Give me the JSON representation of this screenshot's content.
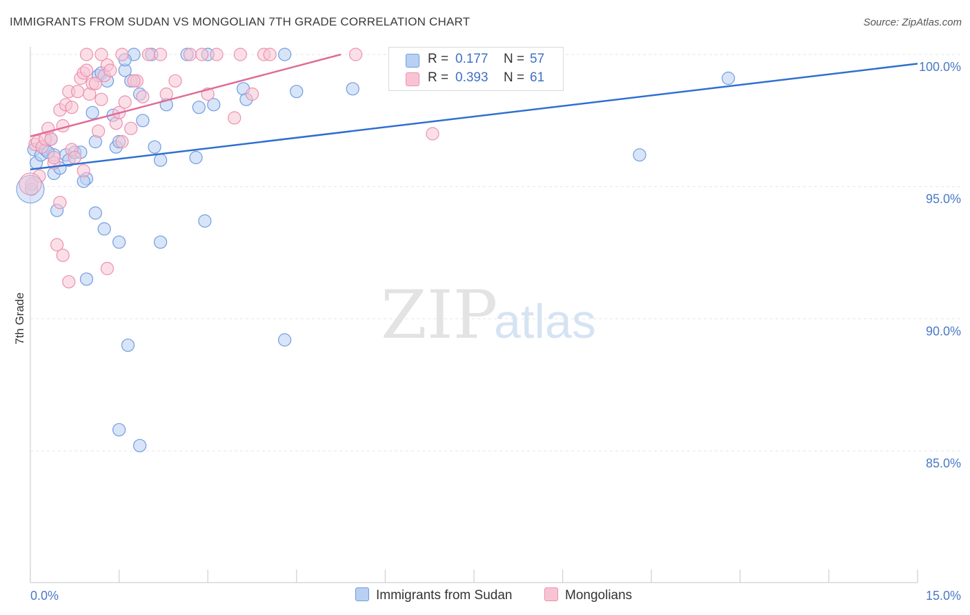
{
  "title": "IMMIGRANTS FROM SUDAN VS MONGOLIAN 7TH GRADE CORRELATION CHART",
  "source": "Source: ZipAtlas.com",
  "watermark": {
    "zip": "ZIP",
    "atlas": "atlas"
  },
  "legend": {
    "r_label": "R =",
    "n_label": "N =",
    "rows": [
      {
        "r": "0.177",
        "n": "57"
      },
      {
        "r": "0.393",
        "n": "61"
      }
    ]
  },
  "colors": {
    "sudan_fill": "#b8d0f2",
    "sudan_stroke": "#6f9be0",
    "sudan_line": "#2f6fd0",
    "mongol_fill": "#f8c4d4",
    "mongol_stroke": "#ec8fae",
    "mongol_line": "#e06b96",
    "tick_text": "#4a78c8",
    "grid": "#e6e6e6"
  },
  "chart_data": {
    "type": "scatter",
    "title": "IMMIGRANTS FROM SUDAN VS MONGOLIAN 7TH GRADE CORRELATION CHART",
    "xlabel": "",
    "ylabel": "7th Grade",
    "xlim": [
      0,
      15
    ],
    "ylim": [
      80.5,
      100.4
    ],
    "x_tick_labels": [
      "0.0%",
      "15.0%"
    ],
    "y_ticks": [
      85,
      90,
      95,
      100
    ],
    "y_tick_labels": [
      "85.0%",
      "90.0%",
      "95.0%",
      "100.0%"
    ],
    "grid": true,
    "legend_position": "top-center",
    "series": [
      {
        "name": "Immigrants from Sudan",
        "r": 0.177,
        "n": 57,
        "trend": {
          "x": [
            0,
            15
          ],
          "y": [
            95.65,
            99.65
          ]
        },
        "points": [
          [
            0.06,
            96.4
          ],
          [
            0.1,
            95.9
          ],
          [
            0.18,
            96.2
          ],
          [
            0.25,
            96.4
          ],
          [
            0.35,
            96.8
          ],
          [
            0.4,
            95.5
          ],
          [
            0.5,
            95.7
          ],
          [
            0.6,
            96.2
          ],
          [
            0.65,
            96.0
          ],
          [
            0.75,
            96.3
          ],
          [
            0.85,
            96.3
          ],
          [
            0.95,
            95.3
          ],
          [
            1.05,
            97.8
          ],
          [
            1.1,
            96.7
          ],
          [
            1.15,
            99.2
          ],
          [
            1.2,
            99.3
          ],
          [
            1.3,
            99.0
          ],
          [
            1.4,
            97.7
          ],
          [
            1.45,
            96.5
          ],
          [
            1.5,
            96.7
          ],
          [
            1.6,
            99.4
          ],
          [
            1.7,
            99.0
          ],
          [
            1.75,
            100.0
          ],
          [
            1.85,
            98.5
          ],
          [
            1.9,
            97.5
          ],
          [
            2.1,
            96.5
          ],
          [
            2.2,
            96.0
          ],
          [
            2.3,
            98.1
          ],
          [
            2.65,
            100.0
          ],
          [
            2.8,
            96.1
          ],
          [
            2.85,
            98.0
          ],
          [
            3.0,
            100.0
          ],
          [
            3.1,
            98.1
          ],
          [
            3.6,
            98.7
          ],
          [
            3.65,
            98.3
          ],
          [
            4.3,
            100.0
          ],
          [
            4.5,
            98.6
          ],
          [
            5.45,
            98.7
          ],
          [
            10.3,
            96.2
          ],
          [
            11.8,
            99.1
          ],
          [
            0.45,
            94.1
          ],
          [
            1.1,
            94.0
          ],
          [
            1.25,
            93.4
          ],
          [
            1.5,
            92.9
          ],
          [
            2.2,
            92.9
          ],
          [
            2.95,
            93.7
          ],
          [
            0.95,
            91.5
          ],
          [
            1.65,
            89.0
          ],
          [
            4.3,
            89.2
          ],
          [
            1.5,
            85.8
          ],
          [
            1.85,
            85.2
          ],
          [
            0.02,
            94.9
          ],
          [
            0.4,
            96.2
          ],
          [
            0.9,
            95.2
          ],
          [
            1.6,
            99.8
          ],
          [
            2.05,
            100.0
          ],
          [
            0.3,
            96.3
          ]
        ]
      },
      {
        "name": "Mongolians",
        "r": 0.393,
        "n": 61,
        "trend": {
          "x": [
            0,
            5.25
          ],
          "y": [
            96.9,
            100.0
          ]
        },
        "points": [
          [
            0.02,
            95.1
          ],
          [
            0.08,
            96.6
          ],
          [
            0.12,
            96.7
          ],
          [
            0.2,
            96.5
          ],
          [
            0.25,
            96.8
          ],
          [
            0.3,
            97.2
          ],
          [
            0.35,
            96.8
          ],
          [
            0.4,
            95.9
          ],
          [
            0.5,
            97.9
          ],
          [
            0.55,
            97.3
          ],
          [
            0.6,
            98.1
          ],
          [
            0.65,
            98.6
          ],
          [
            0.7,
            96.4
          ],
          [
            0.75,
            96.1
          ],
          [
            0.8,
            98.6
          ],
          [
            0.85,
            99.1
          ],
          [
            0.9,
            99.3
          ],
          [
            0.95,
            99.4
          ],
          [
            1.0,
            98.5
          ],
          [
            1.05,
            98.9
          ],
          [
            1.1,
            98.9
          ],
          [
            1.15,
            97.1
          ],
          [
            1.2,
            98.3
          ],
          [
            1.25,
            99.2
          ],
          [
            1.3,
            99.6
          ],
          [
            1.35,
            99.4
          ],
          [
            1.45,
            97.4
          ],
          [
            1.5,
            97.8
          ],
          [
            1.55,
            96.7
          ],
          [
            1.6,
            98.2
          ],
          [
            1.7,
            97.2
          ],
          [
            1.8,
            99.0
          ],
          [
            1.9,
            98.4
          ],
          [
            2.0,
            100.0
          ],
          [
            2.2,
            100.0
          ],
          [
            2.3,
            98.5
          ],
          [
            2.45,
            99.0
          ],
          [
            2.7,
            100.0
          ],
          [
            2.9,
            100.0
          ],
          [
            3.0,
            98.5
          ],
          [
            3.15,
            100.0
          ],
          [
            3.45,
            97.6
          ],
          [
            3.55,
            100.0
          ],
          [
            3.75,
            98.5
          ],
          [
            3.95,
            100.0
          ],
          [
            4.05,
            100.0
          ],
          [
            5.5,
            100.0
          ],
          [
            6.8,
            97.0
          ],
          [
            0.5,
            94.4
          ],
          [
            0.45,
            92.8
          ],
          [
            0.55,
            92.4
          ],
          [
            0.65,
            91.4
          ],
          [
            1.3,
            91.9
          ],
          [
            0.15,
            95.4
          ],
          [
            0.9,
            95.6
          ],
          [
            1.2,
            100.0
          ],
          [
            0.7,
            98.0
          ],
          [
            1.55,
            100.0
          ],
          [
            0.4,
            96.1
          ],
          [
            1.75,
            99.0
          ],
          [
            0.95,
            100.0
          ]
        ]
      }
    ]
  },
  "bottom_legend": [
    "Immigrants from Sudan",
    "Mongolians"
  ]
}
